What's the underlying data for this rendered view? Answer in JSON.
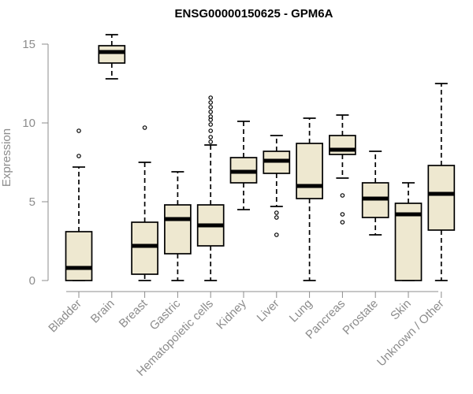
{
  "chart_data": {
    "type": "boxplot",
    "title": "ENSG00000150625 - GPM6A",
    "xlabel": "",
    "ylabel": "Expression",
    "ylim": [
      0,
      16
    ],
    "yticks": [
      0,
      5,
      10,
      15
    ],
    "categories": [
      "Bladder",
      "Brain",
      "Breast",
      "Gastric",
      "Hematopoietic cells",
      "Kidney",
      "Liver",
      "Lung",
      "Pancreas",
      "Prostate",
      "Skin",
      "Unknown / Other"
    ],
    "boxes": [
      {
        "name": "Bladder",
        "min": 0,
        "q1": 0,
        "median": 0.8,
        "q3": 3.1,
        "max": 7.2,
        "outliers": [
          7.9,
          9.5
        ]
      },
      {
        "name": "Brain",
        "min": 12.8,
        "q1": 13.8,
        "median": 14.5,
        "q3": 14.9,
        "max": 15.6,
        "outliers": []
      },
      {
        "name": "Breast",
        "min": 0,
        "q1": 0.4,
        "median": 2.2,
        "q3": 3.7,
        "max": 7.5,
        "outliers": [
          9.7
        ]
      },
      {
        "name": "Gastric",
        "min": 0,
        "q1": 1.7,
        "median": 3.9,
        "q3": 4.8,
        "max": 6.9,
        "outliers": []
      },
      {
        "name": "Hematopoietic cells",
        "min": 0,
        "q1": 2.2,
        "median": 3.5,
        "q3": 4.8,
        "max": 8.6,
        "outliers": [
          8.8,
          9.1,
          9.5,
          9.9,
          10.2,
          10.4,
          10.7,
          11.0,
          11.3,
          11.6
        ]
      },
      {
        "name": "Kidney",
        "min": 4.5,
        "q1": 6.2,
        "median": 6.9,
        "q3": 7.8,
        "max": 10.1,
        "outliers": []
      },
      {
        "name": "Liver",
        "min": 4.7,
        "q1": 6.8,
        "median": 7.6,
        "q3": 8.2,
        "max": 9.2,
        "outliers": [
          4.3,
          4.0,
          2.9
        ]
      },
      {
        "name": "Lung",
        "min": 0,
        "q1": 5.2,
        "median": 6.0,
        "q3": 8.7,
        "max": 10.3,
        "outliers": []
      },
      {
        "name": "Pancreas",
        "min": 6.5,
        "q1": 8.0,
        "median": 8.3,
        "q3": 9.2,
        "max": 10.5,
        "outliers": [
          5.4,
          4.2,
          3.7
        ]
      },
      {
        "name": "Prostate",
        "min": 2.9,
        "q1": 4.0,
        "median": 5.2,
        "q3": 6.2,
        "max": 8.2,
        "outliers": []
      },
      {
        "name": "Skin",
        "min": 0,
        "q1": 0,
        "median": 4.2,
        "q3": 4.9,
        "max": 6.2,
        "outliers": []
      },
      {
        "name": "Unknown / Other",
        "min": 0,
        "q1": 3.2,
        "median": 5.5,
        "q3": 7.3,
        "max": 12.5,
        "outliers": []
      }
    ]
  }
}
